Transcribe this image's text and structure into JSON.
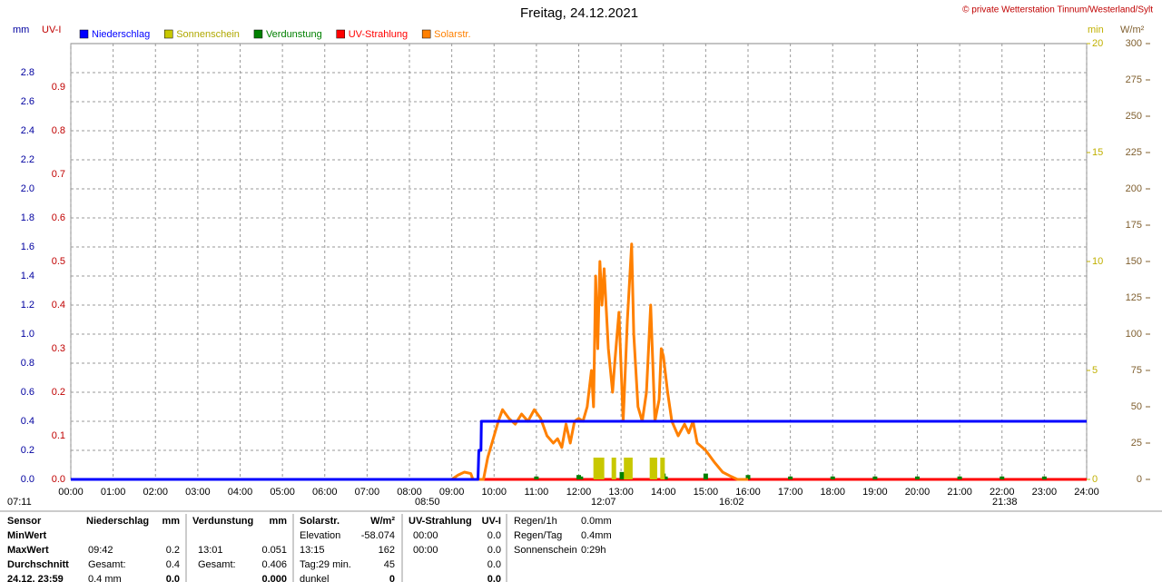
{
  "chart_data": {
    "type": "line",
    "title": "Freitag, 24.12.2021",
    "credit": "© private Wetterstation Tinnum/Westerland/Sylt",
    "ylabel": "mm",
    "y2label": "UV-I",
    "y3label": "min",
    "y4label": "W/m²",
    "xlim": [
      0,
      24
    ],
    "xticks": [
      {
        "value": 0,
        "label": "00:00"
      },
      {
        "value": 1,
        "label": "01:00"
      },
      {
        "value": 2,
        "label": "02:00"
      },
      {
        "value": 3,
        "label": "03:00"
      },
      {
        "value": 4,
        "label": "04:00"
      },
      {
        "value": 5,
        "label": "05:00"
      },
      {
        "value": 6,
        "label": "06:00"
      },
      {
        "value": 7,
        "label": "07:00"
      },
      {
        "value": 8,
        "label": "08:00"
      },
      {
        "value": 9,
        "label": "09:00"
      },
      {
        "value": 10,
        "label": "10:00"
      },
      {
        "value": 11,
        "label": "11:00"
      },
      {
        "value": 12,
        "label": "12:00"
      },
      {
        "value": 13,
        "label": "13:00"
      },
      {
        "value": 14,
        "label": "14:00"
      },
      {
        "value": 15,
        "label": "15:00"
      },
      {
        "value": 16,
        "label": "16:00"
      },
      {
        "value": 17,
        "label": "17:00"
      },
      {
        "value": 18,
        "label": "18:00"
      },
      {
        "value": 19,
        "label": "19:00"
      },
      {
        "value": 20,
        "label": "20:00"
      },
      {
        "value": 21,
        "label": "21:00"
      },
      {
        "value": 22,
        "label": "22:00"
      },
      {
        "value": 23,
        "label": "23:00"
      },
      {
        "value": 24,
        "label": "24:00"
      }
    ],
    "ylim": [
      0,
      3
    ],
    "yticks": [
      {
        "value": 0,
        "label": "0.0"
      },
      0.2,
      0.4,
      0.6,
      0.8,
      {
        "value": 1,
        "label": "1.0"
      },
      1.2,
      1.4,
      1.6,
      1.8,
      {
        "value": 2,
        "label": "2.0"
      },
      2.2,
      2.4,
      2.6,
      2.8
    ],
    "y2lim": [
      0,
      1
    ],
    "y2ticks": [
      {
        "value": 0,
        "label": "0.0"
      },
      0.1,
      0.2,
      0.3,
      0.4,
      0.5,
      0.6,
      0.7,
      0.8,
      0.9
    ],
    "y3lim": [
      0,
      20
    ],
    "y3ticks": [
      0,
      5,
      10,
      15,
      20
    ],
    "y4lim": [
      0,
      300
    ],
    "y4ticks": [
      0,
      25,
      50,
      75,
      100,
      125,
      150,
      175,
      200,
      225,
      250,
      275,
      300
    ],
    "grid": true,
    "series": [
      {
        "name": "Niederschlag",
        "color": "#0000ff",
        "type": "line",
        "axis": "y",
        "x": [
          0,
          9.62,
          9.64,
          9.69,
          9.7,
          24
        ],
        "values": [
          0,
          0,
          0.2,
          0.2,
          0.4,
          0.4
        ]
      },
      {
        "name": "Sonnenschein",
        "color": "#c8c800",
        "type": "bar",
        "axis": "y3",
        "x": [
          12.4,
          12.45,
          12.5,
          12.55,
          12.83,
          13.12,
          13.17,
          13.22,
          13.73,
          13.8,
          13.98
        ],
        "values": [
          1,
          1,
          1,
          1,
          1,
          1,
          1,
          1,
          1,
          1,
          1
        ]
      },
      {
        "name": "Verdunstung",
        "color": "#008000",
        "type": "bar",
        "axis": "y",
        "x": [
          11,
          12,
          12.05,
          13.02,
          14,
          14.05,
          15,
          16,
          17,
          18,
          19,
          20,
          21,
          22,
          23
        ],
        "values": [
          0.02,
          0.03,
          0.02,
          0.051,
          0.04,
          0.02,
          0.04,
          0.03,
          0.02,
          0.02,
          0.02,
          0.02,
          0.02,
          0.02,
          0.02
        ]
      },
      {
        "name": "UV-Strahlung",
        "color": "#ff0000",
        "type": "line",
        "axis": "y2",
        "x": [
          0,
          24
        ],
        "values": [
          0,
          0
        ]
      },
      {
        "name": "Solarstr.",
        "color": "#ff8000",
        "type": "line",
        "axis": "y4",
        "x": [
          9.0,
          9.15,
          9.3,
          9.45,
          9.5,
          9.75,
          9.85,
          10.0,
          10.1,
          10.2,
          10.35,
          10.5,
          10.65,
          10.8,
          10.95,
          11.1,
          11.25,
          11.4,
          11.5,
          11.6,
          11.7,
          11.8,
          11.9,
          12.0,
          12.1,
          12.2,
          12.3,
          12.35,
          12.4,
          12.45,
          12.5,
          12.55,
          12.6,
          12.7,
          12.8,
          12.85,
          12.95,
          13.05,
          13.15,
          13.25,
          13.3,
          13.4,
          13.5,
          13.6,
          13.7,
          13.8,
          13.9,
          13.95,
          14.0,
          14.1,
          14.2,
          14.35,
          14.5,
          14.6,
          14.7,
          14.8,
          15.0,
          15.2,
          15.4,
          15.6,
          15.75,
          16.0
        ],
        "values": [
          0,
          3,
          5,
          4,
          0,
          0,
          15,
          30,
          40,
          48,
          42,
          38,
          45,
          40,
          48,
          42,
          30,
          25,
          28,
          22,
          38,
          25,
          40,
          42,
          40,
          50,
          75,
          50,
          140,
          90,
          150,
          120,
          145,
          90,
          60,
          80,
          115,
          40,
          110,
          162,
          100,
          50,
          40,
          60,
          120,
          40,
          55,
          90,
          85,
          60,
          40,
          30,
          38,
          32,
          40,
          25,
          20,
          12,
          5,
          2,
          0,
          0
        ]
      }
    ],
    "markers": [
      "07:11",
      "08:50",
      "12:07",
      "16:02",
      "21:38"
    ]
  },
  "stats": {
    "row_labels": [
      "Sensor",
      "MinWert",
      "MaxWert",
      "Durchschnitt",
      "24.12. 23:59"
    ],
    "blocks": [
      {
        "header": [
          "Niederschlag",
          "mm"
        ],
        "rows": [
          [
            null,
            null
          ],
          [
            "09:42",
            "0.2"
          ],
          [
            "Gesamt:",
            "0.4"
          ],
          [
            "0.4 mm",
            "0.0"
          ]
        ]
      },
      {
        "header": [
          "Verdunstung",
          "mm"
        ],
        "rows": [
          [
            null,
            null
          ],
          [
            "13:01",
            "0.051"
          ],
          [
            "Gesamt:",
            "0.406"
          ],
          [
            null,
            "0.000"
          ]
        ]
      },
      {
        "header": [
          "Solarstr.",
          "W/m²"
        ],
        "rows": [
          [
            "Elevation",
            "-58.074"
          ],
          [
            "13:15",
            "162"
          ],
          [
            "Tag:29 min.",
            "45"
          ],
          [
            "dunkel",
            "0"
          ]
        ]
      },
      {
        "header": [
          "UV-Strahlung",
          "UV-I"
        ],
        "rows": [
          [
            "00:00",
            "0.0"
          ],
          [
            "00:00",
            "0.0"
          ],
          [
            null,
            "0.0"
          ],
          [
            null,
            "0.0"
          ]
        ]
      },
      {
        "rows": [
          [
            "Regen/1h",
            "0.0mm"
          ],
          [
            "Regen/Tag",
            "0.4mm"
          ],
          [
            "Sonnenschein",
            "0:29h"
          ]
        ]
      }
    ]
  }
}
